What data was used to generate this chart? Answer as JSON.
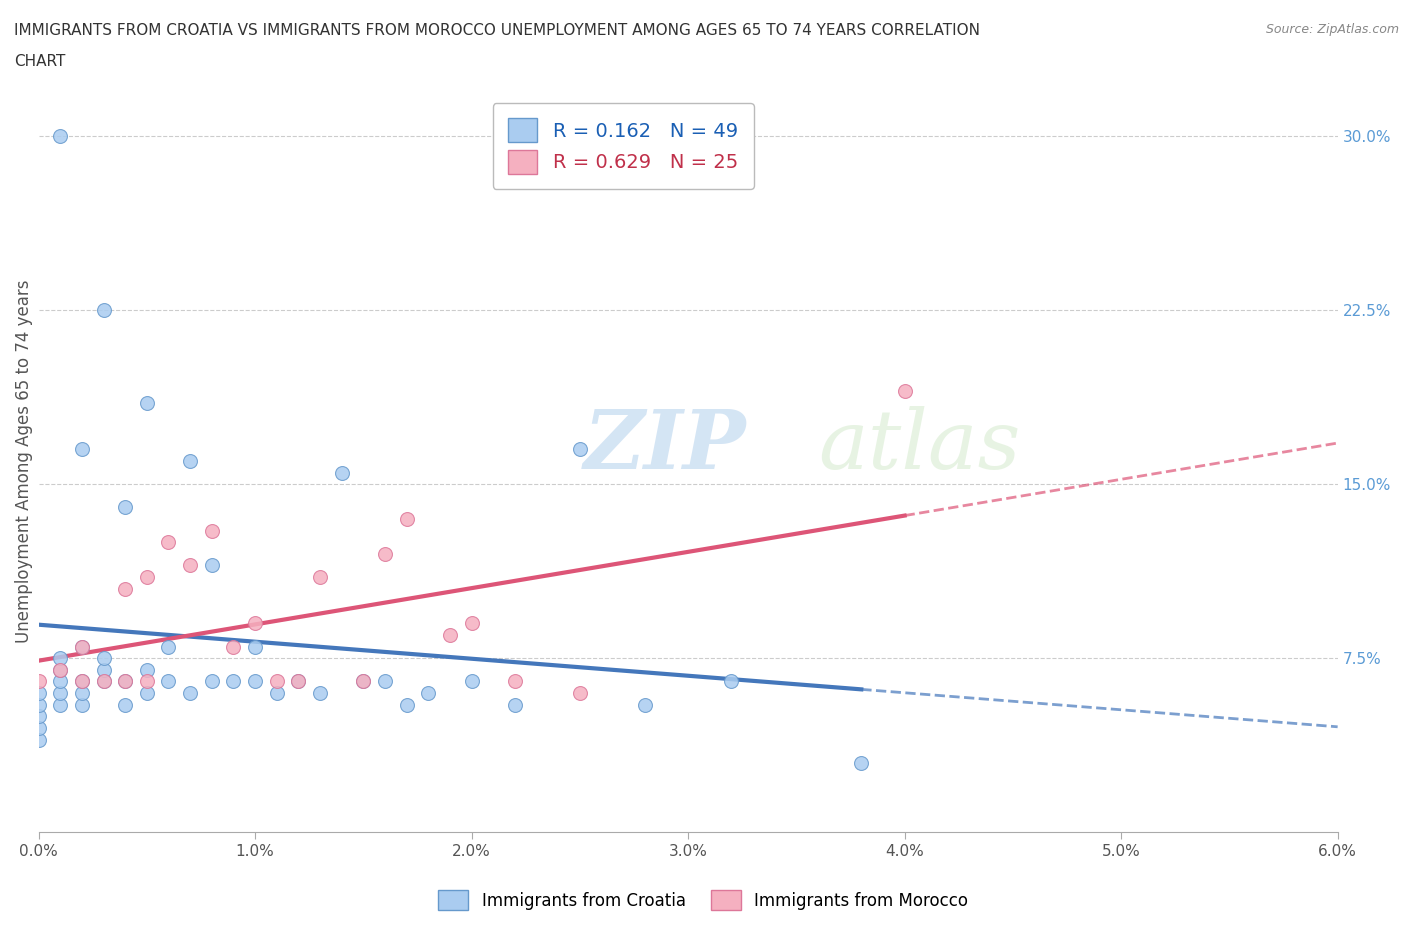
{
  "title_line1": "IMMIGRANTS FROM CROATIA VS IMMIGRANTS FROM MOROCCO UNEMPLOYMENT AMONG AGES 65 TO 74 YEARS CORRELATION",
  "title_line2": "CHART",
  "source": "Source: ZipAtlas.com",
  "ylabel": "Unemployment Among Ages 65 to 74 years",
  "xlim": [
    0.0,
    0.06
  ],
  "ylim": [
    0.0,
    0.32
  ],
  "xticks": [
    0.0,
    0.01,
    0.02,
    0.03,
    0.04,
    0.05,
    0.06
  ],
  "xticklabels": [
    "0.0%",
    "1.0%",
    "2.0%",
    "3.0%",
    "4.0%",
    "5.0%",
    "6.0%"
  ],
  "yticks_right": [
    0.075,
    0.15,
    0.225,
    0.3
  ],
  "ytick_right_labels": [
    "7.5%",
    "15.0%",
    "22.5%",
    "30.0%"
  ],
  "croatia_color": "#aaccf0",
  "croatia_edge_color": "#6699cc",
  "croatia_line_color": "#4477bb",
  "morocco_color": "#f5b0c0",
  "morocco_edge_color": "#dd7799",
  "morocco_line_color": "#dd5577",
  "legend_R_croatia": "0.162",
  "legend_N_croatia": "49",
  "legend_R_morocco": "0.629",
  "legend_N_morocco": "25",
  "grid_color": "#cccccc",
  "background_color": "#ffffff",
  "croatia_x": [
    0.0,
    0.0,
    0.0,
    0.0,
    0.0,
    0.001,
    0.001,
    0.001,
    0.001,
    0.001,
    0.001,
    0.002,
    0.002,
    0.002,
    0.002,
    0.002,
    0.003,
    0.003,
    0.003,
    0.003,
    0.004,
    0.004,
    0.004,
    0.005,
    0.005,
    0.005,
    0.006,
    0.006,
    0.007,
    0.007,
    0.008,
    0.008,
    0.009,
    0.01,
    0.01,
    0.011,
    0.012,
    0.013,
    0.014,
    0.015,
    0.016,
    0.017,
    0.018,
    0.02,
    0.022,
    0.025,
    0.028,
    0.032,
    0.038
  ],
  "croatia_y": [
    0.04,
    0.045,
    0.05,
    0.055,
    0.06,
    0.055,
    0.06,
    0.065,
    0.07,
    0.075,
    0.3,
    0.055,
    0.06,
    0.065,
    0.08,
    0.165,
    0.065,
    0.07,
    0.075,
    0.225,
    0.055,
    0.065,
    0.14,
    0.06,
    0.07,
    0.185,
    0.065,
    0.08,
    0.06,
    0.16,
    0.065,
    0.115,
    0.065,
    0.065,
    0.08,
    0.06,
    0.065,
    0.06,
    0.155,
    0.065,
    0.065,
    0.055,
    0.06,
    0.065,
    0.055,
    0.165,
    0.055,
    0.065,
    0.03
  ],
  "morocco_x": [
    0.0,
    0.001,
    0.002,
    0.002,
    0.003,
    0.004,
    0.004,
    0.005,
    0.005,
    0.006,
    0.007,
    0.008,
    0.009,
    0.01,
    0.011,
    0.012,
    0.013,
    0.015,
    0.016,
    0.017,
    0.019,
    0.02,
    0.022,
    0.025,
    0.04
  ],
  "morocco_y": [
    0.065,
    0.07,
    0.065,
    0.08,
    0.065,
    0.065,
    0.105,
    0.065,
    0.11,
    0.125,
    0.115,
    0.13,
    0.08,
    0.09,
    0.065,
    0.065,
    0.11,
    0.065,
    0.12,
    0.135,
    0.085,
    0.09,
    0.065,
    0.06,
    0.19
  ],
  "watermark_zip": "ZIP",
  "watermark_atlas": "atlas"
}
